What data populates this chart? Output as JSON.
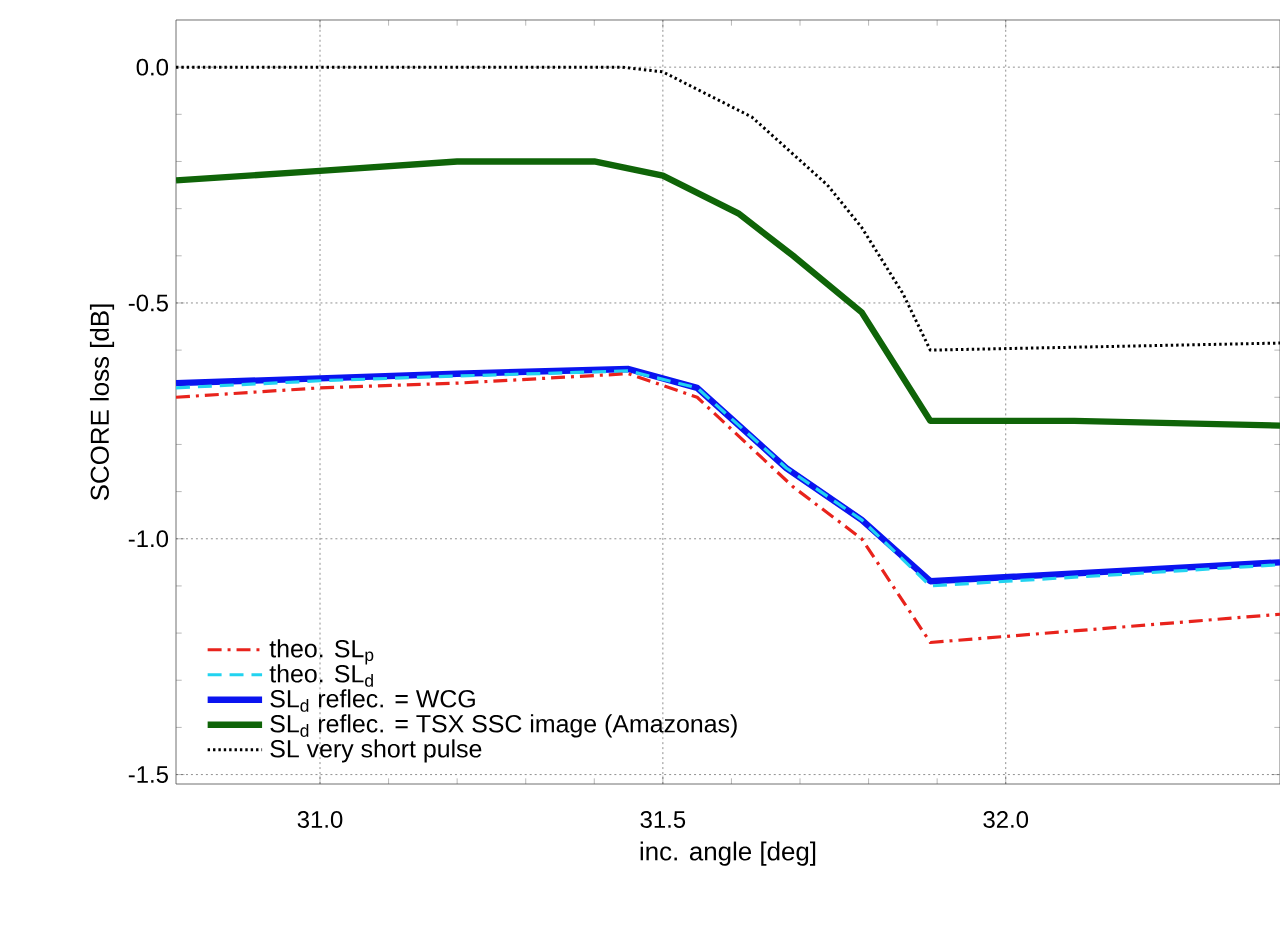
{
  "chart_data": {
    "type": "line",
    "xlabel": "inc. angle [deg]",
    "ylabel": "SCORE loss [dB]",
    "xlim": [
      30.79,
      32.4
    ],
    "ylim": [
      -1.52,
      0.1
    ],
    "xticks": [
      {
        "value": 31,
        "label": "31.0"
      },
      31.5,
      {
        "value": 32,
        "label": "32.0"
      }
    ],
    "yticks": [
      {
        "value": -1.5,
        "label": "-1.5"
      },
      {
        "value": -1,
        "label": "-1.0"
      },
      {
        "value": -0.5,
        "label": "-0.5"
      },
      {
        "value": 0,
        "label": "0.0"
      }
    ],
    "grid": true,
    "legend": "bottom left",
    "series": [
      {
        "name": "theo. SL$_{p}$",
        "color": "#e8231c",
        "line_style": "dashdot",
        "x": [
          30.79,
          31.0,
          31.2,
          31.45,
          31.55,
          31.69,
          31.79,
          31.89,
          32.4
        ],
        "values": [
          -0.7,
          -0.68,
          -0.67,
          -0.65,
          -0.7,
          -0.89,
          -1.0,
          -1.22,
          -1.16
        ]
      },
      {
        "name": "theo. SL$_{d}$",
        "color": "#22d3f0",
        "line_style": "dashed",
        "x": [
          30.79,
          31.0,
          31.2,
          31.45,
          31.55,
          31.68,
          31.79,
          31.89,
          32.4
        ],
        "values": [
          -0.68,
          -0.665,
          -0.655,
          -0.644,
          -0.68,
          -0.85,
          -0.96,
          -1.1,
          -1.055
        ]
      },
      {
        "name": "SL$_{d}$ reflec. = WCG",
        "color": "#0a14f0",
        "line_style": "solid",
        "x": [
          30.79,
          31.0,
          31.2,
          31.45,
          31.55,
          31.68,
          31.79,
          31.89,
          32.4
        ],
        "values": [
          -0.67,
          -0.66,
          -0.65,
          -0.64,
          -0.68,
          -0.85,
          -0.96,
          -1.09,
          -1.05
        ]
      },
      {
        "name": "SL$_{d}$ reflec. = TSX SSC image (Amazonas)",
        "color": "#0f6408",
        "line_style": "solid",
        "x": [
          30.79,
          31.0,
          31.2,
          31.4,
          31.5,
          31.61,
          31.69,
          31.79,
          31.89,
          32.1,
          32.4
        ],
        "values": [
          -0.24,
          -0.22,
          -0.2,
          -0.2,
          -0.23,
          -0.31,
          -0.4,
          -0.52,
          -0.75,
          -0.75,
          -0.76
        ]
      },
      {
        "name": "SL very short pulse",
        "color": "#000000",
        "line_style": "dotted",
        "x": [
          30.79,
          31.44,
          31.5,
          31.63,
          31.74,
          31.79,
          31.85,
          31.89,
          32.4
        ],
        "values": [
          0,
          0,
          -0.01,
          -0.106,
          -0.25,
          -0.34,
          -0.48,
          -0.6,
          -0.585
        ]
      }
    ]
  }
}
